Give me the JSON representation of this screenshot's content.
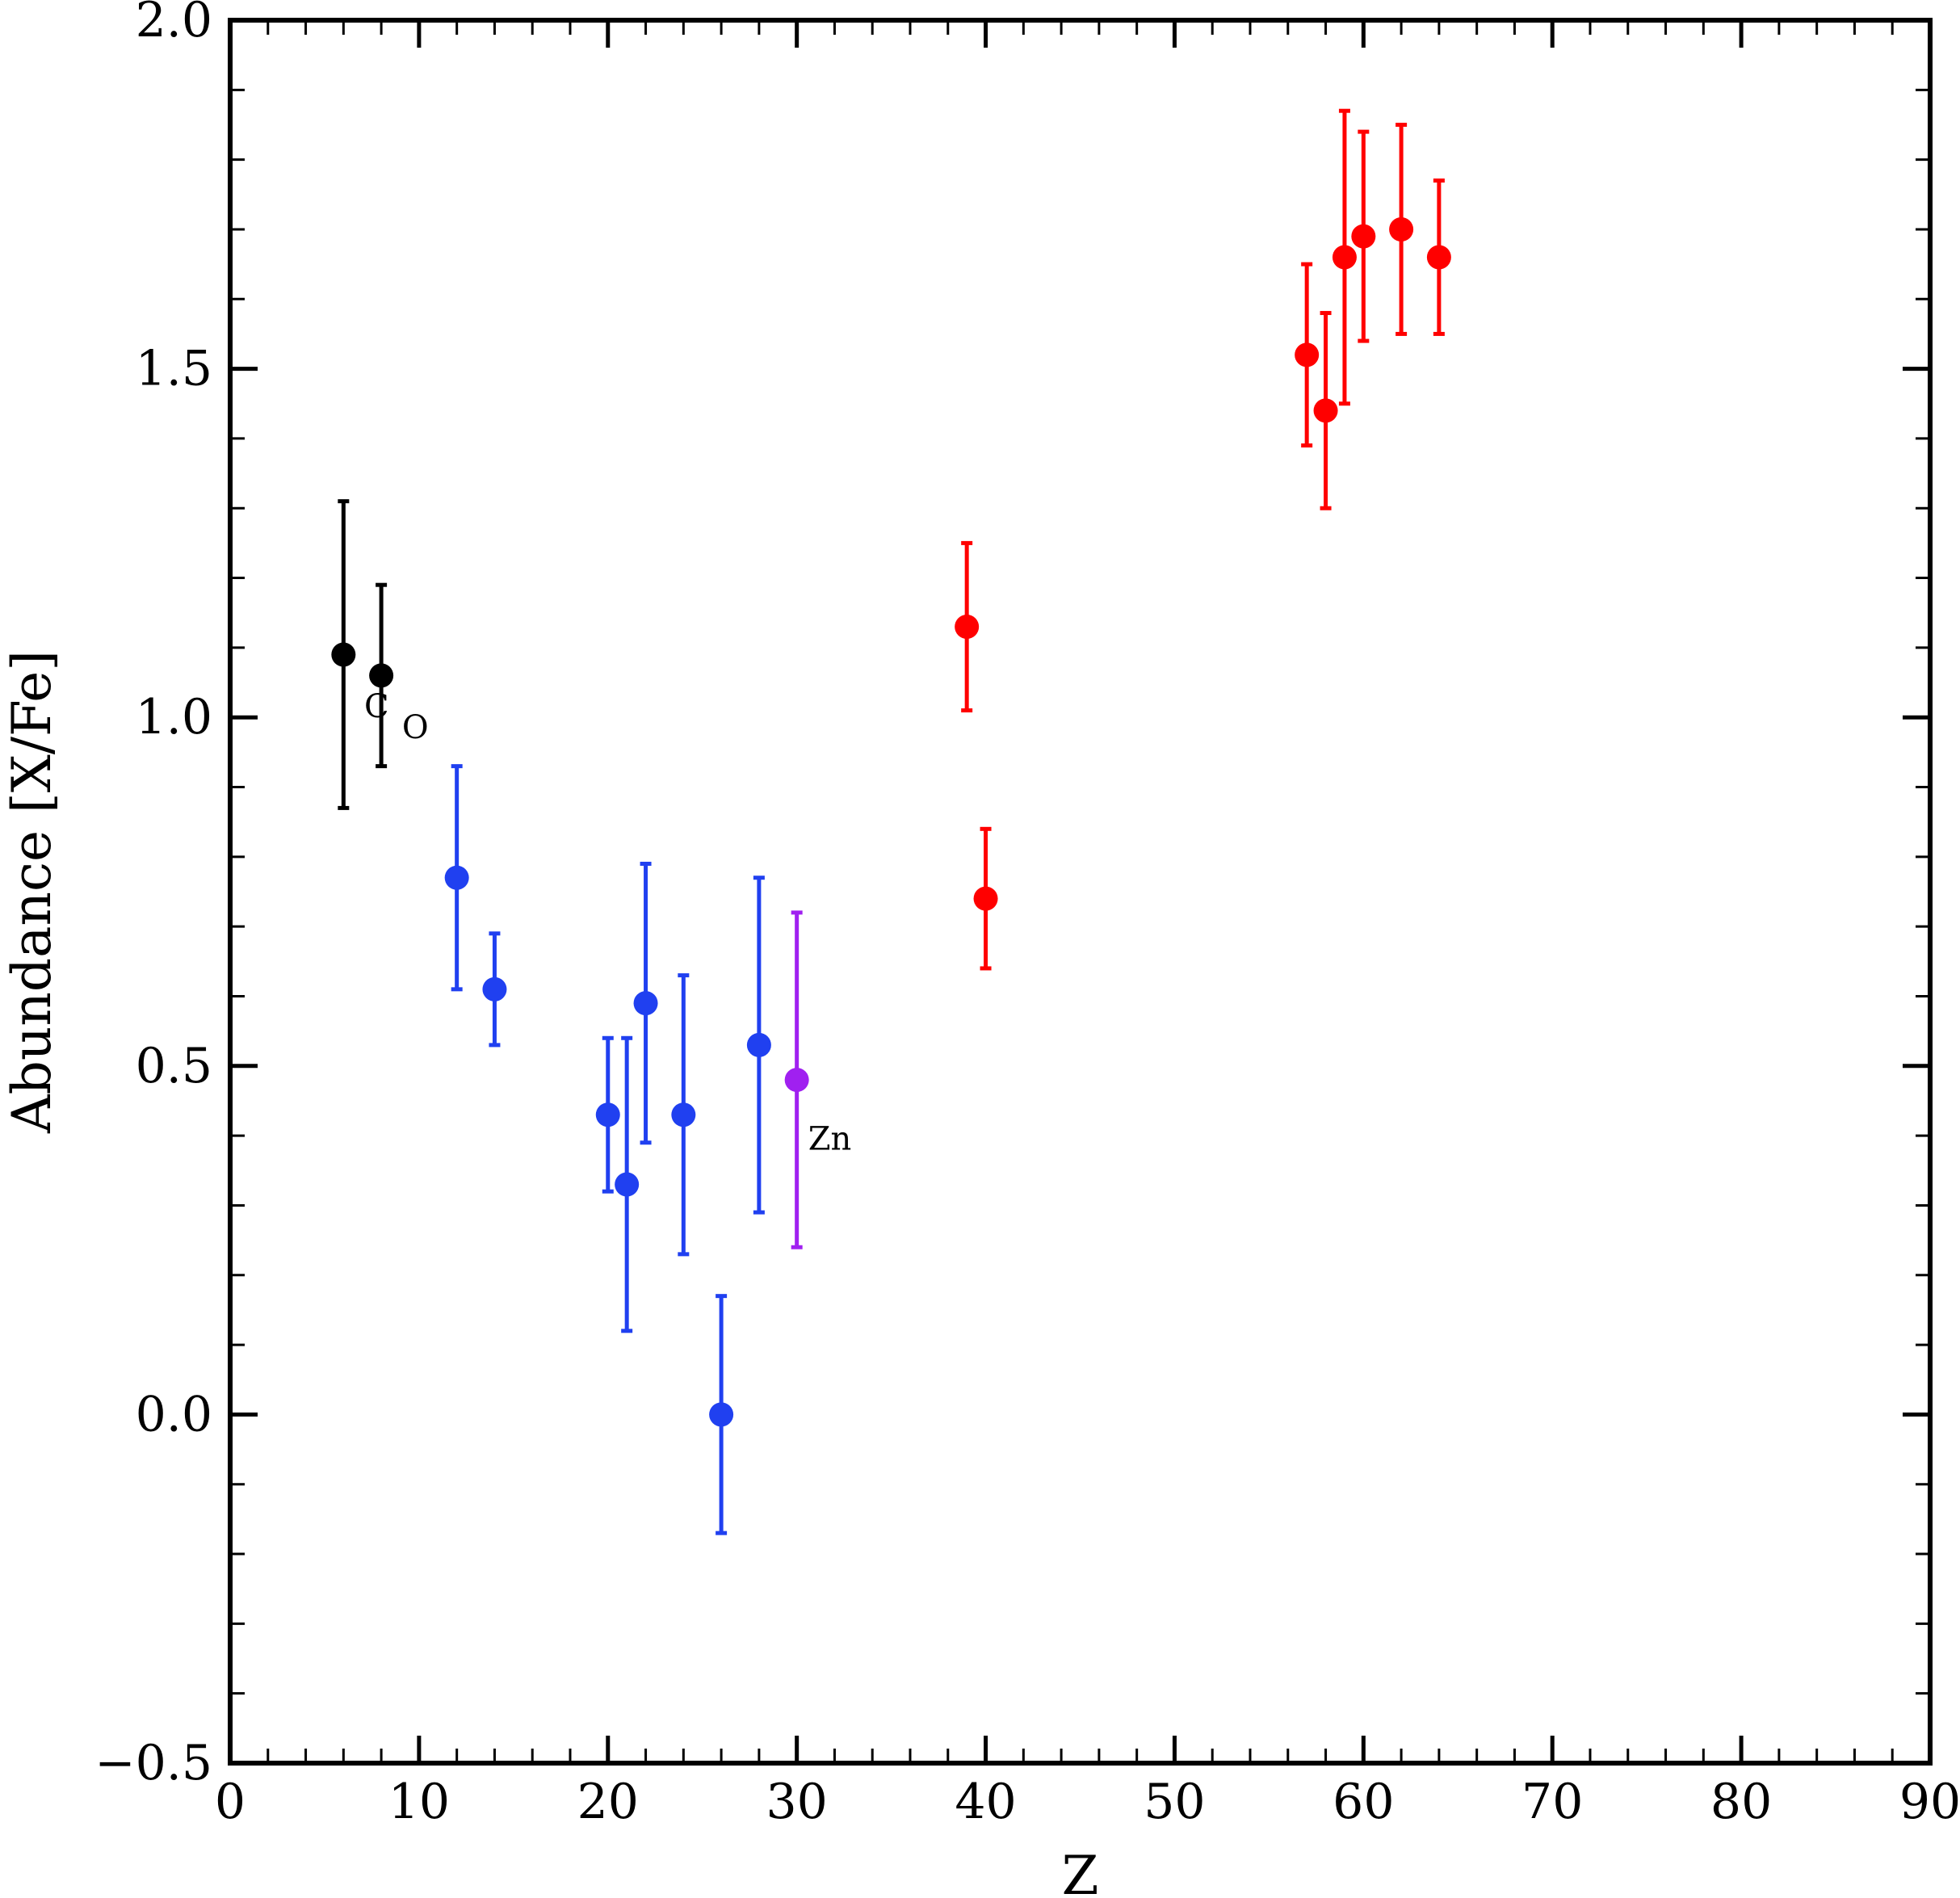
{
  "chart_data": {
    "type": "scatter",
    "xlabel": "Z",
    "ylabel": "Abundance [X/Fe]",
    "xlim": [
      0,
      90
    ],
    "ylim": [
      -0.5,
      2.0
    ],
    "x_ticks": [
      0,
      10,
      20,
      30,
      40,
      50,
      60,
      70,
      80,
      90
    ],
    "x_tick_labels": [
      "0",
      "10",
      "20",
      "30",
      "40",
      "50",
      "60",
      "70",
      "80",
      "90"
    ],
    "y_ticks": [
      -0.5,
      0.0,
      0.5,
      1.0,
      1.5,
      2.0
    ],
    "y_tick_labels": [
      "−0.5",
      "0.0",
      "0.5",
      "1.0",
      "1.5",
      "2.0"
    ],
    "grid": false,
    "series": [
      {
        "color": "#000000",
        "points": [
          {
            "x": 6,
            "y": 1.09,
            "err": 0.22
          },
          {
            "x": 8,
            "y": 1.06,
            "err": 0.13
          }
        ]
      },
      {
        "color": "#2040f0",
        "points": [
          {
            "x": 12,
            "y": 0.77,
            "err": 0.16
          },
          {
            "x": 14,
            "y": 0.61,
            "err": 0.08
          },
          {
            "x": 20,
            "y": 0.43,
            "err": 0.11
          },
          {
            "x": 21,
            "y": 0.33,
            "err": 0.21
          },
          {
            "x": 22,
            "y": 0.59,
            "err": 0.2
          },
          {
            "x": 24,
            "y": 0.43,
            "err": 0.2
          },
          {
            "x": 26,
            "y": 0.0,
            "err": 0.17
          },
          {
            "x": 28,
            "y": 0.53,
            "err": 0.24
          }
        ]
      },
      {
        "color": "#a020f0",
        "points": [
          {
            "x": 30,
            "y": 0.48,
            "err": 0.24
          }
        ]
      },
      {
        "color": "#ff0000",
        "points": [
          {
            "x": 39,
            "y": 1.13,
            "err": 0.12
          },
          {
            "x": 40,
            "y": 0.74,
            "err": 0.1
          },
          {
            "x": 57,
            "y": 1.52,
            "err": 0.13
          },
          {
            "x": 58,
            "y": 1.44,
            "err": 0.14
          },
          {
            "x": 59,
            "y": 1.66,
            "err": 0.21
          },
          {
            "x": 60,
            "y": 1.69,
            "err": 0.15
          },
          {
            "x": 62,
            "y": 1.7,
            "err": 0.15
          },
          {
            "x": 64,
            "y": 1.66,
            "err": 0.11
          }
        ]
      }
    ],
    "annotations": [
      {
        "text": "C",
        "x": 7.1,
        "y": 1.0
      },
      {
        "text": "O",
        "x": 9.1,
        "y": 0.97
      },
      {
        "text": "Zn",
        "x": 30.6,
        "y": 0.38
      }
    ]
  }
}
